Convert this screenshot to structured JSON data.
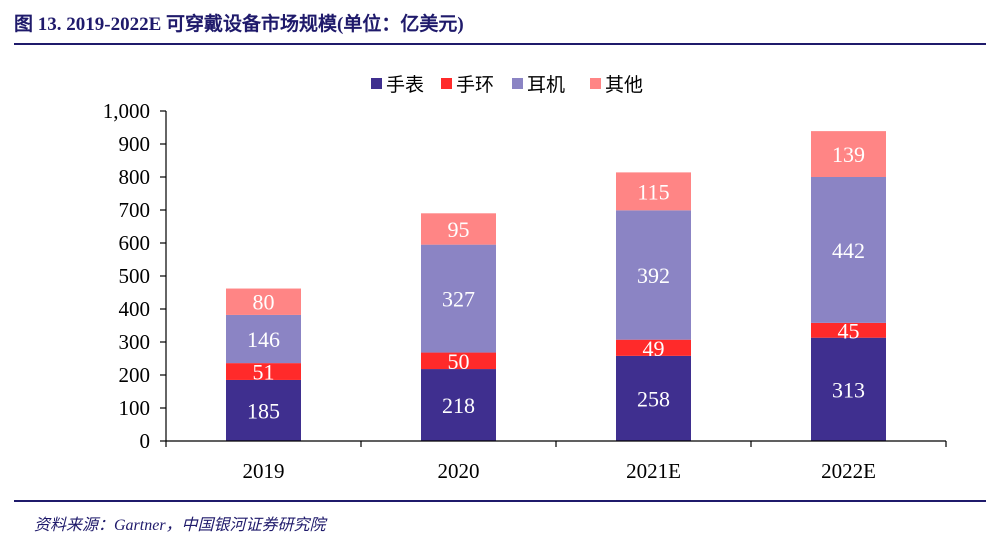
{
  "figure": {
    "title": "图 13. 2019-2022E 可穿戴设备市场规模(单位：亿美元)",
    "source": "资料来源：Gartner，中国银河证券研究院"
  },
  "chart_data": {
    "type": "bar",
    "stacked": true,
    "categories": [
      "2019",
      "2020",
      "2021E",
      "2022E"
    ],
    "series": [
      {
        "name": "手表",
        "values": [
          185,
          218,
          258,
          313
        ],
        "color": "#3f2f8f"
      },
      {
        "name": "手环",
        "values": [
          51,
          50,
          49,
          45
        ],
        "color": "#ff2a2a"
      },
      {
        "name": "耳机",
        "values": [
          146,
          327,
          392,
          442
        ],
        "color": "#8b84c4"
      },
      {
        "name": "其他",
        "values": [
          80,
          95,
          115,
          139
        ],
        "color": "#ff8585"
      }
    ],
    "ylim": [
      0,
      1000
    ],
    "yticks": [
      "0",
      "100",
      "200",
      "300",
      "400",
      "500",
      "600",
      "700",
      "800",
      "900",
      "1,000"
    ],
    "legend_position": "top-center",
    "label_color": "#ffffff",
    "axis_color": "#000000"
  }
}
